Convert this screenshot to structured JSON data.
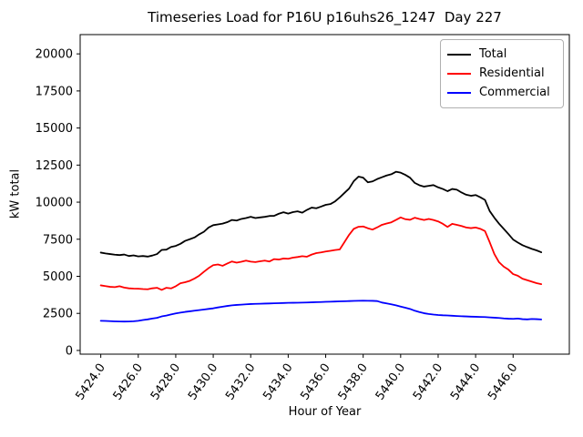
{
  "window": {
    "kind": "matplotlib-figure",
    "background_color": "#ffffff"
  },
  "chart_data": {
    "type": "line",
    "title": "Timeseries Load for P16U p16uhs26_1247  Day 227",
    "xlabel": "Hour of Year",
    "ylabel": "kW total",
    "grid": false,
    "legend_position": "upper right",
    "xlim": [
      5422.9,
      5449.0
    ],
    "ylim": [
      -250,
      21300
    ],
    "xticks": [
      5424,
      5426,
      5428,
      5430,
      5432,
      5434,
      5436,
      5438,
      5440,
      5442,
      5444,
      5446
    ],
    "xtick_labels": [
      "5424.0",
      "5426.0",
      "5428.0",
      "5430.0",
      "5432.0",
      "5434.0",
      "5436.0",
      "5438.0",
      "5440.0",
      "5442.0",
      "5444.0",
      "5446.0"
    ],
    "yticks": [
      0,
      2500,
      5000,
      7500,
      10000,
      12500,
      15000,
      17500,
      20000
    ],
    "ytick_labels": [
      "0",
      "2500",
      "5000",
      "7500",
      "10000",
      "12500",
      "15000",
      "17500",
      "20000"
    ],
    "xtick_rotation_deg": 55,
    "x": [
      5424.0,
      5424.25,
      5424.5,
      5424.75,
      5425.0,
      5425.25,
      5425.5,
      5425.75,
      5426.0,
      5426.25,
      5426.5,
      5426.75,
      5427.0,
      5427.25,
      5427.5,
      5427.75,
      5428.0,
      5428.25,
      5428.5,
      5428.75,
      5429.0,
      5429.25,
      5429.5,
      5429.75,
      5430.0,
      5430.25,
      5430.5,
      5430.75,
      5431.0,
      5431.25,
      5431.5,
      5431.75,
      5432.0,
      5432.25,
      5432.5,
      5432.75,
      5433.0,
      5433.25,
      5433.5,
      5433.75,
      5434.0,
      5434.25,
      5434.5,
      5434.75,
      5435.0,
      5435.25,
      5435.5,
      5435.75,
      5436.0,
      5436.25,
      5436.5,
      5436.75,
      5437.0,
      5437.25,
      5437.5,
      5437.75,
      5438.0,
      5438.25,
      5438.5,
      5438.75,
      5439.0,
      5439.25,
      5439.5,
      5439.75,
      5440.0,
      5440.25,
      5440.5,
      5440.75,
      5441.0,
      5441.25,
      5441.5,
      5441.75,
      5442.0,
      5442.25,
      5442.5,
      5442.75,
      5443.0,
      5443.25,
      5443.5,
      5443.75,
      5444.0,
      5444.25,
      5444.5,
      5444.75,
      5445.0,
      5445.25,
      5445.5,
      5445.75,
      5446.0,
      5446.25,
      5446.5,
      5446.75,
      5447.0,
      5447.25,
      5447.5
    ],
    "series": [
      {
        "name": "Total",
        "color": "#000000",
        "values": [
          6600,
          6540,
          6500,
          6460,
          6430,
          6470,
          6370,
          6410,
          6340,
          6370,
          6330,
          6400,
          6500,
          6780,
          6800,
          6980,
          7050,
          7190,
          7390,
          7500,
          7620,
          7830,
          8000,
          8290,
          8450,
          8500,
          8550,
          8650,
          8800,
          8760,
          8870,
          8930,
          9010,
          8930,
          8970,
          9010,
          9070,
          9080,
          9220,
          9320,
          9230,
          9330,
          9380,
          9290,
          9480,
          9630,
          9590,
          9700,
          9820,
          9870,
          10050,
          10320,
          10620,
          10920,
          11420,
          11720,
          11650,
          11340,
          11400,
          11560,
          11680,
          11800,
          11880,
          12050,
          11990,
          11840,
          11650,
          11300,
          11140,
          11050,
          11100,
          11150,
          11000,
          10890,
          10740,
          10890,
          10840,
          10650,
          10500,
          10430,
          10480,
          10330,
          10150,
          9400,
          8950,
          8550,
          8200,
          7850,
          7480,
          7280,
          7100,
          6970,
          6850,
          6750,
          6620
        ]
      },
      {
        "name": "Residential",
        "color": "#ff0000",
        "values": [
          4390,
          4340,
          4290,
          4270,
          4330,
          4240,
          4190,
          4170,
          4165,
          4140,
          4125,
          4190,
          4225,
          4085,
          4225,
          4185,
          4330,
          4530,
          4600,
          4695,
          4850,
          5040,
          5300,
          5550,
          5750,
          5800,
          5710,
          5860,
          6000,
          5920,
          5980,
          6060,
          5990,
          5960,
          6010,
          6060,
          6000,
          6160,
          6130,
          6200,
          6180,
          6260,
          6300,
          6360,
          6320,
          6465,
          6565,
          6610,
          6670,
          6720,
          6770,
          6810,
          7300,
          7800,
          8200,
          8340,
          8360,
          8240,
          8150,
          8300,
          8470,
          8560,
          8640,
          8800,
          8970,
          8850,
          8810,
          8950,
          8870,
          8800,
          8870,
          8800,
          8700,
          8540,
          8330,
          8540,
          8470,
          8390,
          8290,
          8250,
          8290,
          8200,
          8050,
          7300,
          6500,
          5950,
          5650,
          5450,
          5150,
          5040,
          4840,
          4740,
          4640,
          4540,
          4470
        ]
      },
      {
        "name": "Commercial",
        "color": "#0000ff",
        "values": [
          2000,
          1990,
          1975,
          1960,
          1955,
          1950,
          1955,
          1970,
          2000,
          2050,
          2095,
          2150,
          2200,
          2295,
          2350,
          2430,
          2500,
          2550,
          2600,
          2640,
          2680,
          2720,
          2760,
          2800,
          2840,
          2900,
          2950,
          3000,
          3040,
          3070,
          3090,
          3110,
          3130,
          3140,
          3150,
          3160,
          3170,
          3180,
          3190,
          3200,
          3210,
          3215,
          3220,
          3225,
          3235,
          3245,
          3255,
          3265,
          3280,
          3290,
          3300,
          3310,
          3320,
          3330,
          3340,
          3350,
          3355,
          3350,
          3345,
          3330,
          3230,
          3170,
          3110,
          3040,
          2960,
          2880,
          2800,
          2680,
          2590,
          2510,
          2460,
          2420,
          2390,
          2370,
          2360,
          2340,
          2320,
          2305,
          2295,
          2280,
          2270,
          2260,
          2250,
          2230,
          2210,
          2190,
          2160,
          2140,
          2130,
          2150,
          2110,
          2095,
          2120,
          2110,
          2090
        ]
      }
    ]
  }
}
